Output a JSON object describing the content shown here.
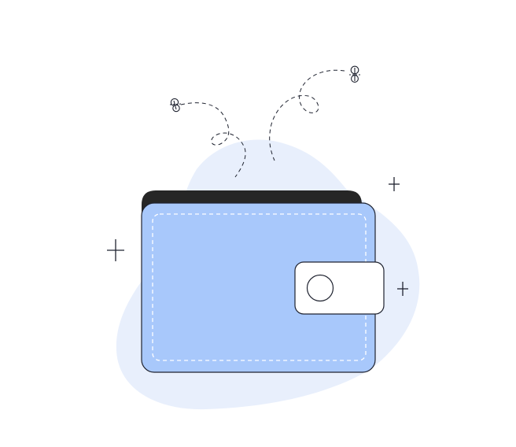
{
  "illustration": {
    "subject": "empty-wallet",
    "colors": {
      "background": "#ffffff",
      "blob": "#e8effc",
      "wallet_body": "#a8c8fb",
      "wallet_back": "#262626",
      "clasp": "#ffffff",
      "outline": "#1f2330",
      "stitching": "#ffffff"
    },
    "icons": [
      "wallet-icon",
      "moth-icon",
      "sparkle-icon"
    ]
  }
}
